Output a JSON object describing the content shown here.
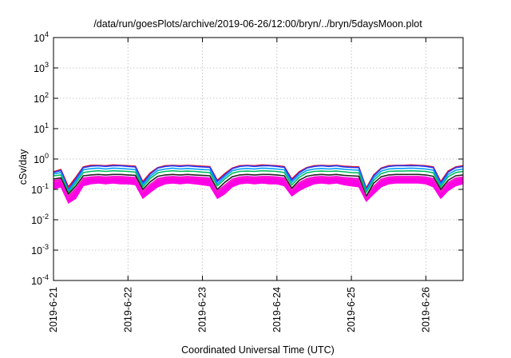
{
  "chart_data": {
    "type": "line",
    "title": "/data/run/goesPlots/archive/2019-06-26/12:00/bryn/../bryn/5daysMoon.plot",
    "xlabel": "Coordinated Universal Time (UTC)",
    "ylabel": "cSv/day",
    "yscale": "log",
    "ylim": [
      0.0001,
      10000
    ],
    "xlim": [
      0,
      5.5
    ],
    "grid": true,
    "legend": "none",
    "x_tick_values": [
      0,
      1,
      2,
      3,
      4,
      5
    ],
    "x_tick_labels": [
      "2019-6-21",
      "2019-6-22",
      "2019-6-23",
      "2019-6-24",
      "2019-6-25",
      "2019-6-26"
    ],
    "y_ticks": [
      {
        "base": "10",
        "exp": "4",
        "value": 10000
      },
      {
        "base": "10",
        "exp": "3",
        "value": 1000
      },
      {
        "base": "10",
        "exp": "2",
        "value": 100
      },
      {
        "base": "10",
        "exp": "1",
        "value": 10
      },
      {
        "base": "10",
        "exp": "0",
        "value": 1
      },
      {
        "base": "10",
        "exp": "-1",
        "value": 0.1
      },
      {
        "base": "10",
        "exp": "-2",
        "value": 0.01
      },
      {
        "base": "10",
        "exp": "-3",
        "value": 0.001
      },
      {
        "base": "10",
        "exp": "-4",
        "value": 0.0001
      }
    ],
    "x": [
      0,
      0.1,
      0.2,
      0.3,
      0.4,
      0.5,
      0.6,
      0.7,
      0.8,
      0.9,
      1.0,
      1.1,
      1.2,
      1.3,
      1.4,
      1.5,
      1.6,
      1.7,
      1.8,
      1.9,
      2.0,
      2.1,
      2.2,
      2.3,
      2.4,
      2.5,
      2.6,
      2.7,
      2.8,
      2.9,
      3.0,
      3.1,
      3.2,
      3.3,
      3.4,
      3.5,
      3.6,
      3.7,
      3.8,
      3.9,
      4.0,
      4.1,
      4.2,
      4.3,
      4.4,
      4.5,
      4.6,
      4.7,
      4.8,
      4.9,
      5.0,
      5.1,
      5.2,
      5.3,
      5.4,
      5.5
    ],
    "series": [
      {
        "color": "#e8001c",
        "values": [
          0.38,
          0.45,
          0.12,
          0.25,
          0.55,
          0.62,
          0.62,
          0.6,
          0.64,
          0.62,
          0.6,
          0.58,
          0.18,
          0.35,
          0.52,
          0.6,
          0.62,
          0.6,
          0.62,
          0.6,
          0.58,
          0.56,
          0.2,
          0.33,
          0.5,
          0.6,
          0.62,
          0.6,
          0.64,
          0.62,
          0.6,
          0.56,
          0.22,
          0.38,
          0.52,
          0.6,
          0.62,
          0.6,
          0.62,
          0.58,
          0.56,
          0.55,
          0.11,
          0.3,
          0.5,
          0.6,
          0.62,
          0.62,
          0.64,
          0.62,
          0.6,
          0.55,
          0.18,
          0.4,
          0.55,
          0.6
        ]
      },
      {
        "color": "#2040ff",
        "values": [
          0.36,
          0.42,
          0.1,
          0.22,
          0.52,
          0.58,
          0.6,
          0.57,
          0.6,
          0.6,
          0.57,
          0.55,
          0.16,
          0.32,
          0.5,
          0.57,
          0.6,
          0.57,
          0.6,
          0.57,
          0.55,
          0.53,
          0.18,
          0.3,
          0.48,
          0.57,
          0.6,
          0.57,
          0.6,
          0.6,
          0.57,
          0.53,
          0.2,
          0.35,
          0.5,
          0.57,
          0.6,
          0.57,
          0.6,
          0.55,
          0.53,
          0.52,
          0.1,
          0.28,
          0.48,
          0.57,
          0.6,
          0.6,
          0.6,
          0.6,
          0.57,
          0.52,
          0.16,
          0.37,
          0.52,
          0.57
        ]
      },
      {
        "color": "#00a0ff",
        "values": [
          0.32,
          0.36,
          0.09,
          0.19,
          0.44,
          0.48,
          0.5,
          0.47,
          0.5,
          0.49,
          0.47,
          0.45,
          0.14,
          0.27,
          0.42,
          0.47,
          0.5,
          0.47,
          0.49,
          0.47,
          0.45,
          0.44,
          0.15,
          0.26,
          0.41,
          0.47,
          0.49,
          0.47,
          0.5,
          0.49,
          0.47,
          0.44,
          0.17,
          0.3,
          0.42,
          0.47,
          0.49,
          0.47,
          0.49,
          0.46,
          0.44,
          0.43,
          0.09,
          0.24,
          0.4,
          0.47,
          0.49,
          0.49,
          0.5,
          0.49,
          0.47,
          0.43,
          0.14,
          0.31,
          0.43,
          0.47
        ]
      },
      {
        "color": "#00c060",
        "values": [
          0.28,
          0.3,
          0.08,
          0.16,
          0.36,
          0.39,
          0.41,
          0.39,
          0.41,
          0.4,
          0.39,
          0.37,
          0.12,
          0.23,
          0.35,
          0.39,
          0.41,
          0.39,
          0.4,
          0.39,
          0.37,
          0.36,
          0.13,
          0.22,
          0.34,
          0.39,
          0.4,
          0.39,
          0.41,
          0.4,
          0.39,
          0.36,
          0.14,
          0.25,
          0.35,
          0.39,
          0.4,
          0.39,
          0.4,
          0.38,
          0.36,
          0.35,
          0.08,
          0.2,
          0.33,
          0.39,
          0.4,
          0.4,
          0.41,
          0.4,
          0.39,
          0.35,
          0.12,
          0.26,
          0.36,
          0.39
        ]
      },
      {
        "color": "#222222",
        "values": [
          0.22,
          0.24,
          0.07,
          0.13,
          0.28,
          0.3,
          0.31,
          0.3,
          0.31,
          0.31,
          0.3,
          0.29,
          0.1,
          0.18,
          0.27,
          0.3,
          0.31,
          0.3,
          0.31,
          0.3,
          0.29,
          0.28,
          0.1,
          0.17,
          0.26,
          0.3,
          0.31,
          0.3,
          0.31,
          0.31,
          0.3,
          0.28,
          0.11,
          0.2,
          0.27,
          0.3,
          0.31,
          0.3,
          0.31,
          0.29,
          0.28,
          0.27,
          0.06,
          0.16,
          0.26,
          0.3,
          0.31,
          0.31,
          0.31,
          0.31,
          0.3,
          0.27,
          0.1,
          0.2,
          0.28,
          0.3
        ]
      },
      {
        "color": "#ff1dc8",
        "values": [
          0.18,
          0.2,
          0.05,
          0.1,
          0.22,
          0.24,
          0.25,
          0.24,
          0.25,
          0.25,
          0.24,
          0.23,
          0.08,
          0.14,
          0.21,
          0.24,
          0.25,
          0.24,
          0.25,
          0.24,
          0.23,
          0.22,
          0.08,
          0.13,
          0.2,
          0.24,
          0.25,
          0.24,
          0.25,
          0.25,
          0.24,
          0.22,
          0.09,
          0.16,
          0.21,
          0.24,
          0.25,
          0.24,
          0.25,
          0.23,
          0.22,
          0.21,
          0.05,
          0.12,
          0.2,
          0.24,
          0.25,
          0.25,
          0.25,
          0.25,
          0.24,
          0.21,
          0.08,
          0.16,
          0.22,
          0.24
        ]
      }
    ],
    "band": {
      "color": "#ff00e6",
      "low": [
        0.1,
        0.12,
        0.035,
        0.05,
        0.13,
        0.15,
        0.16,
        0.15,
        0.16,
        0.15,
        0.15,
        0.14,
        0.05,
        0.08,
        0.12,
        0.15,
        0.16,
        0.15,
        0.16,
        0.15,
        0.14,
        0.13,
        0.05,
        0.07,
        0.12,
        0.15,
        0.16,
        0.15,
        0.16,
        0.15,
        0.15,
        0.13,
        0.06,
        0.09,
        0.12,
        0.15,
        0.16,
        0.15,
        0.16,
        0.14,
        0.13,
        0.12,
        0.04,
        0.07,
        0.12,
        0.15,
        0.16,
        0.16,
        0.16,
        0.16,
        0.15,
        0.12,
        0.05,
        0.09,
        0.13,
        0.15
      ],
      "high": [
        0.2,
        0.22,
        0.06,
        0.11,
        0.24,
        0.26,
        0.27,
        0.26,
        0.27,
        0.27,
        0.26,
        0.25,
        0.09,
        0.15,
        0.23,
        0.26,
        0.27,
        0.26,
        0.27,
        0.26,
        0.25,
        0.24,
        0.09,
        0.14,
        0.22,
        0.26,
        0.27,
        0.26,
        0.27,
        0.27,
        0.26,
        0.24,
        0.1,
        0.17,
        0.23,
        0.26,
        0.27,
        0.26,
        0.27,
        0.25,
        0.24,
        0.23,
        0.06,
        0.13,
        0.22,
        0.26,
        0.27,
        0.27,
        0.27,
        0.27,
        0.26,
        0.23,
        0.09,
        0.17,
        0.24,
        0.26
      ]
    }
  }
}
